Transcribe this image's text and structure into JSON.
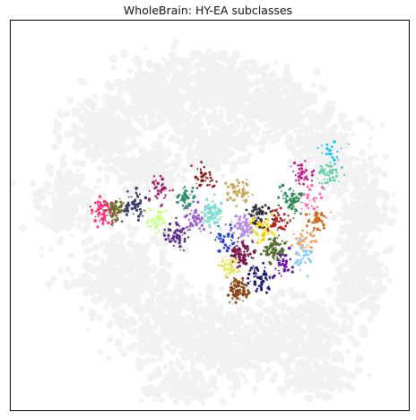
{
  "chart_data": {
    "type": "scatter",
    "title": "WholeBrain: HY-EA subclasses",
    "xlabel": "",
    "ylabel": "",
    "grid": false,
    "legend": "none",
    "background_points": {
      "color": "#f2f2f2",
      "label": ""
    },
    "highlight_palette": [
      "#ff2d78",
      "#6b6b2f",
      "#3a3a6e",
      "#c9c93a",
      "#2f8f6e",
      "#8b1a1a",
      "#c7ff8a",
      "#1f3fd6",
      "#a51f6b",
      "#5f2f8f",
      "#c9a85a",
      "#2f2f3a",
      "#7fe0d0",
      "#9b59d0",
      "#2e8b57",
      "#d2691e",
      "#b22222",
      "#ff69b4",
      "#00bfff",
      "#66cdaa",
      "#6a0dad",
      "#ffd700",
      "#8b4513",
      "#191970",
      "#87cefa",
      "#f4a460",
      "#556b2f",
      "#c71585"
    ],
    "highlight_clusters": [
      {
        "x": 2.35,
        "y": 2.25,
        "n": 80,
        "color": "#ff2d78"
      },
      {
        "x": 2.75,
        "y": 2.3,
        "n": 60,
        "color": "#6b6b2f"
      },
      {
        "x": 3.3,
        "y": 2.45,
        "n": 50,
        "color": "#3a3a6e"
      },
      {
        "x": 3.9,
        "y": 2.0,
        "n": 60,
        "color": "#c7ff8a"
      },
      {
        "x": 4.45,
        "y": 1.55,
        "n": 60,
        "color": "#5f2f8f"
      },
      {
        "x": 4.0,
        "y": 2.9,
        "n": 40,
        "color": "#a51f6b"
      },
      {
        "x": 4.75,
        "y": 2.7,
        "n": 45,
        "color": "#2f8f6e"
      },
      {
        "x": 5.3,
        "y": 3.2,
        "n": 35,
        "color": "#8b1a1a"
      },
      {
        "x": 5.05,
        "y": 2.05,
        "n": 50,
        "color": "#9b59d0"
      },
      {
        "x": 5.55,
        "y": 2.25,
        "n": 90,
        "color": "#7fe0d0"
      },
      {
        "x": 6.3,
        "y": 2.85,
        "n": 55,
        "color": "#c9a85a"
      },
      {
        "x": 6.9,
        "y": 2.2,
        "n": 60,
        "color": "#2f2f3a"
      },
      {
        "x": 6.4,
        "y": 1.8,
        "n": 70,
        "color": "#b58be6"
      },
      {
        "x": 6.35,
        "y": 1.0,
        "n": 90,
        "color": "#7a1a4a"
      },
      {
        "x": 6.05,
        "y": 0.6,
        "n": 60,
        "color": "#e6e66a"
      },
      {
        "x": 6.25,
        "y": 0.0,
        "n": 80,
        "color": "#8b4513"
      },
      {
        "x": 6.9,
        "y": 0.3,
        "n": 60,
        "color": "#191970"
      },
      {
        "x": 7.3,
        "y": 1.15,
        "n": 80,
        "color": "#556b2f"
      },
      {
        "x": 7.8,
        "y": 2.6,
        "n": 60,
        "color": "#2e8b57"
      },
      {
        "x": 8.15,
        "y": 3.3,
        "n": 40,
        "color": "#c71585"
      },
      {
        "x": 8.85,
        "y": 3.35,
        "n": 50,
        "color": "#66cdaa"
      },
      {
        "x": 8.95,
        "y": 3.95,
        "n": 20,
        "color": "#00bfff"
      },
      {
        "x": 8.35,
        "y": 2.6,
        "n": 30,
        "color": "#ff69b4"
      },
      {
        "x": 8.6,
        "y": 2.0,
        "n": 45,
        "color": "#d2691e"
      },
      {
        "x": 8.2,
        "y": 1.45,
        "n": 40,
        "color": "#f4a460"
      },
      {
        "x": 8.1,
        "y": 0.95,
        "n": 40,
        "color": "#87cefa"
      },
      {
        "x": 7.6,
        "y": 0.75,
        "n": 35,
        "color": "#6a0dad"
      },
      {
        "x": 7.0,
        "y": 1.7,
        "n": 50,
        "color": "#ffd700"
      },
      {
        "x": 5.85,
        "y": 1.5,
        "n": 40,
        "color": "#1f3fd6"
      },
      {
        "x": 7.45,
        "y": 1.95,
        "n": 40,
        "color": "#b22222"
      }
    ],
    "xlim": [
      -0.3,
      11.2
    ],
    "ylim": [
      -3.5,
      7.8
    ]
  }
}
